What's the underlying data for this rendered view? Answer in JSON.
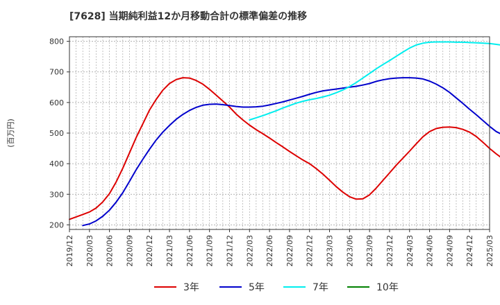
{
  "chart_data": {
    "type": "line",
    "title": "[7628]  当期純利益12か月移動合計の標準偏差の推移",
    "ylabel": "(百万円)",
    "xlabel": "",
    "ylim": [
      185,
      815
    ],
    "yticks": [
      200,
      300,
      400,
      500,
      600,
      700,
      800
    ],
    "xlim": [
      "2019-12",
      "2025-03"
    ],
    "xticks": [
      "2019/12",
      "2020/03",
      "2020/06",
      "2020/09",
      "2020/12",
      "2021/03",
      "2021/06",
      "2021/09",
      "2021/12",
      "2022/03",
      "2022/06",
      "2022/09",
      "2022/12",
      "2023/03",
      "2023/06",
      "2023/09",
      "2023/12",
      "2024/03",
      "2024/06",
      "2024/09",
      "2024/12",
      "2025/03"
    ],
    "grid": true,
    "legend_position": "bottom",
    "series": [
      {
        "name": "3年",
        "color": "#dd0000",
        "points": [
          [
            "2019-12",
            218
          ],
          [
            "2020-01",
            226
          ],
          [
            "2020-02",
            234
          ],
          [
            "2020-03",
            242
          ],
          [
            "2020-04",
            255
          ],
          [
            "2020-05",
            275
          ],
          [
            "2020-06",
            302
          ],
          [
            "2020-07",
            340
          ],
          [
            "2020-08",
            385
          ],
          [
            "2020-09",
            435
          ],
          [
            "2020-10",
            485
          ],
          [
            "2020-11",
            530
          ],
          [
            "2020-12",
            575
          ],
          [
            "2021-01",
            610
          ],
          [
            "2021-02",
            640
          ],
          [
            "2021-03",
            662
          ],
          [
            "2021-04",
            675
          ],
          [
            "2021-05",
            681
          ],
          [
            "2021-06",
            680
          ],
          [
            "2021-07",
            672
          ],
          [
            "2021-08",
            660
          ],
          [
            "2021-09",
            643
          ],
          [
            "2021-10",
            624
          ],
          [
            "2021-11",
            605
          ],
          [
            "2021-12",
            585
          ],
          [
            "2022-01",
            562
          ],
          [
            "2022-02",
            543
          ],
          [
            "2022-03",
            526
          ],
          [
            "2022-04",
            511
          ],
          [
            "2022-05",
            498
          ],
          [
            "2022-06",
            484
          ],
          [
            "2022-07",
            469
          ],
          [
            "2022-08",
            455
          ],
          [
            "2022-09",
            440
          ],
          [
            "2022-10",
            426
          ],
          [
            "2022-11",
            412
          ],
          [
            "2022-12",
            400
          ],
          [
            "2023-01",
            384
          ],
          [
            "2023-02",
            366
          ],
          [
            "2023-03",
            346
          ],
          [
            "2023-04",
            325
          ],
          [
            "2023-05",
            307
          ],
          [
            "2023-06",
            292
          ],
          [
            "2023-07",
            284
          ],
          [
            "2023-08",
            285
          ],
          [
            "2023-09",
            298
          ],
          [
            "2023-10",
            320
          ],
          [
            "2023-11",
            345
          ],
          [
            "2023-12",
            370
          ],
          [
            "2024-01",
            395
          ],
          [
            "2024-02",
            418
          ],
          [
            "2024-03",
            441
          ],
          [
            "2024-04",
            465
          ],
          [
            "2024-05",
            488
          ],
          [
            "2024-06",
            505
          ],
          [
            "2024-07",
            515
          ],
          [
            "2024-08",
            519
          ],
          [
            "2024-09",
            520
          ],
          [
            "2024-10",
            518
          ],
          [
            "2024-11",
            512
          ],
          [
            "2024-12",
            503
          ],
          [
            "2025-01",
            489
          ],
          [
            "2025-02",
            470
          ],
          [
            "2025-03",
            450
          ],
          [
            "2025-04",
            432
          ],
          [
            "2025-05",
            416
          ]
        ]
      },
      {
        "name": "5年",
        "color": "#0000cc",
        "points": [
          [
            "2020-02",
            198
          ],
          [
            "2020-03",
            203
          ],
          [
            "2020-04",
            213
          ],
          [
            "2020-05",
            228
          ],
          [
            "2020-06",
            248
          ],
          [
            "2020-07",
            274
          ],
          [
            "2020-08",
            305
          ],
          [
            "2020-09",
            342
          ],
          [
            "2020-10",
            380
          ],
          [
            "2020-11",
            414
          ],
          [
            "2020-12",
            447
          ],
          [
            "2021-01",
            477
          ],
          [
            "2021-02",
            503
          ],
          [
            "2021-03",
            525
          ],
          [
            "2021-04",
            545
          ],
          [
            "2021-05",
            561
          ],
          [
            "2021-06",
            574
          ],
          [
            "2021-07",
            584
          ],
          [
            "2021-08",
            591
          ],
          [
            "2021-09",
            594
          ],
          [
            "2021-10",
            595
          ],
          [
            "2021-11",
            593
          ],
          [
            "2021-12",
            590
          ],
          [
            "2022-01",
            587
          ],
          [
            "2022-02",
            585
          ],
          [
            "2022-03",
            585
          ],
          [
            "2022-04",
            586
          ],
          [
            "2022-05",
            588
          ],
          [
            "2022-06",
            592
          ],
          [
            "2022-07",
            597
          ],
          [
            "2022-08",
            602
          ],
          [
            "2022-09",
            608
          ],
          [
            "2022-10",
            614
          ],
          [
            "2022-11",
            620
          ],
          [
            "2022-12",
            627
          ],
          [
            "2023-01",
            633
          ],
          [
            "2023-02",
            638
          ],
          [
            "2023-03",
            641
          ],
          [
            "2023-04",
            644
          ],
          [
            "2023-05",
            647
          ],
          [
            "2023-06",
            650
          ],
          [
            "2023-07",
            653
          ],
          [
            "2023-08",
            657
          ],
          [
            "2023-09",
            662
          ],
          [
            "2023-10",
            669
          ],
          [
            "2023-11",
            674
          ],
          [
            "2023-12",
            678
          ],
          [
            "2024-01",
            680
          ],
          [
            "2024-02",
            681
          ],
          [
            "2024-03",
            681
          ],
          [
            "2024-04",
            680
          ],
          [
            "2024-05",
            677
          ],
          [
            "2024-06",
            670
          ],
          [
            "2024-07",
            660
          ],
          [
            "2024-08",
            648
          ],
          [
            "2024-09",
            633
          ],
          [
            "2024-10",
            615
          ],
          [
            "2024-11",
            597
          ],
          [
            "2024-12",
            578
          ],
          [
            "2025-01",
            560
          ],
          [
            "2025-02",
            541
          ],
          [
            "2025-03",
            522
          ],
          [
            "2025-04",
            505
          ],
          [
            "2025-05",
            494
          ]
        ]
      },
      {
        "name": "7年",
        "color": "#00eeee",
        "points": [
          [
            "2022-03",
            543
          ],
          [
            "2022-04",
            550
          ],
          [
            "2022-05",
            557
          ],
          [
            "2022-06",
            565
          ],
          [
            "2022-07",
            573
          ],
          [
            "2022-08",
            582
          ],
          [
            "2022-09",
            590
          ],
          [
            "2022-10",
            598
          ],
          [
            "2022-11",
            604
          ],
          [
            "2022-12",
            609
          ],
          [
            "2023-01",
            613
          ],
          [
            "2023-02",
            618
          ],
          [
            "2023-03",
            624
          ],
          [
            "2023-04",
            632
          ],
          [
            "2023-05",
            641
          ],
          [
            "2023-06",
            652
          ],
          [
            "2023-07",
            665
          ],
          [
            "2023-08",
            680
          ],
          [
            "2023-09",
            695
          ],
          [
            "2023-10",
            710
          ],
          [
            "2023-11",
            724
          ],
          [
            "2023-12",
            737
          ],
          [
            "2024-01",
            751
          ],
          [
            "2024-02",
            765
          ],
          [
            "2024-03",
            778
          ],
          [
            "2024-04",
            788
          ],
          [
            "2024-05",
            794
          ],
          [
            "2024-06",
            797
          ],
          [
            "2024-07",
            798
          ],
          [
            "2024-08",
            798
          ],
          [
            "2024-09",
            798
          ],
          [
            "2024-10",
            797
          ],
          [
            "2024-11",
            797
          ],
          [
            "2024-12",
            796
          ],
          [
            "2025-01",
            795
          ],
          [
            "2025-02",
            794
          ],
          [
            "2025-03",
            793
          ],
          [
            "2025-04",
            790
          ],
          [
            "2025-05",
            787
          ]
        ]
      },
      {
        "name": "10年",
        "color": "#008000",
        "points": []
      }
    ]
  }
}
